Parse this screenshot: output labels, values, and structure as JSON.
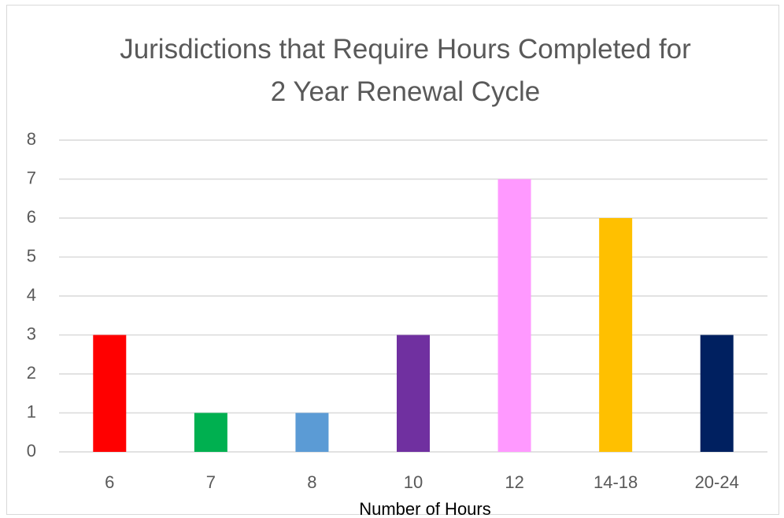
{
  "chart_data": {
    "type": "bar",
    "title": "Jurisdictions that Require Hours Completed for 2 Year Renewal Cycle",
    "x_label": "Number of Hours",
    "categories": [
      "6",
      "7",
      "8",
      "10",
      "12",
      "14-18",
      "20-24"
    ],
    "values": [
      3,
      1,
      1,
      3,
      7,
      6,
      3
    ],
    "colors": [
      "#ff0000",
      "#00b050",
      "#5b9bd5",
      "#7030a0",
      "#ff99ff",
      "#ffc000",
      "#002060"
    ],
    "ylim": [
      0,
      8
    ],
    "yticks": [
      0,
      1,
      2,
      3,
      4,
      5,
      6,
      7,
      8
    ],
    "grid": true
  }
}
